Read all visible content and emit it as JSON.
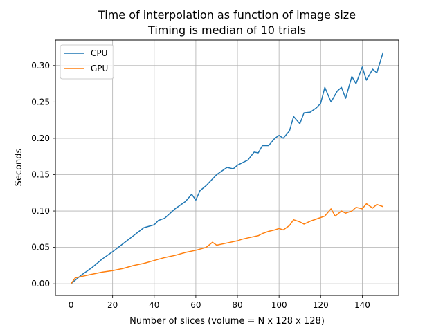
{
  "chart_data": {
    "type": "line",
    "title": "Time of interpolation as function of image size",
    "subtitle": "Timing is median of 10 trials",
    "xlabel": "Number of slices (volume = N x 128 x 128)",
    "ylabel": "Seconds",
    "xlim": [
      -7.5,
      157.5
    ],
    "ylim": [
      -0.016,
      0.335
    ],
    "xticks": [
      0,
      20,
      40,
      60,
      80,
      100,
      120,
      140
    ],
    "xtick_labels": [
      "0",
      "20",
      "40",
      "60",
      "80",
      "100",
      "120",
      "140"
    ],
    "yticks": [
      0.0,
      0.05,
      0.1,
      0.15,
      0.2,
      0.25,
      0.3
    ],
    "ytick_labels": [
      "0.00",
      "0.05",
      "0.10",
      "0.15",
      "0.20",
      "0.25",
      "0.30"
    ],
    "grid": true,
    "legend_position": "top-left",
    "series": [
      {
        "name": "CPU",
        "color": "#1f77b4",
        "x": [
          0,
          5,
          10,
          15,
          20,
          25,
          30,
          35,
          40,
          42,
          45,
          50,
          55,
          58,
          60,
          62,
          65,
          70,
          75,
          78,
          80,
          85,
          88,
          90,
          92,
          95,
          98,
          100,
          102,
          105,
          107,
          110,
          112,
          115,
          118,
          120,
          122,
          125,
          128,
          130,
          132,
          135,
          137,
          140,
          142,
          145,
          147,
          150
        ],
        "values": [
          0.0,
          0.012,
          0.022,
          0.034,
          0.044,
          0.055,
          0.066,
          0.077,
          0.081,
          0.087,
          0.09,
          0.103,
          0.113,
          0.123,
          0.115,
          0.128,
          0.135,
          0.15,
          0.16,
          0.158,
          0.163,
          0.17,
          0.181,
          0.18,
          0.19,
          0.19,
          0.2,
          0.204,
          0.2,
          0.21,
          0.23,
          0.22,
          0.235,
          0.236,
          0.242,
          0.248,
          0.27,
          0.25,
          0.265,
          0.27,
          0.255,
          0.285,
          0.275,
          0.298,
          0.28,
          0.295,
          0.29,
          0.318
        ]
      },
      {
        "name": "GPU",
        "color": "#ff7f0e",
        "x": [
          0,
          2,
          5,
          10,
          15,
          20,
          25,
          30,
          35,
          40,
          45,
          50,
          55,
          60,
          65,
          68,
          70,
          75,
          80,
          82,
          85,
          90,
          92,
          95,
          98,
          100,
          102,
          105,
          107,
          110,
          112,
          115,
          118,
          120,
          122,
          125,
          127,
          130,
          132,
          135,
          137,
          140,
          142,
          145,
          147,
          150
        ],
        "values": [
          0.0,
          0.008,
          0.01,
          0.013,
          0.016,
          0.018,
          0.021,
          0.025,
          0.028,
          0.032,
          0.036,
          0.039,
          0.043,
          0.046,
          0.05,
          0.057,
          0.053,
          0.056,
          0.059,
          0.061,
          0.063,
          0.066,
          0.069,
          0.072,
          0.074,
          0.076,
          0.074,
          0.08,
          0.088,
          0.085,
          0.082,
          0.086,
          0.089,
          0.091,
          0.093,
          0.103,
          0.093,
          0.1,
          0.097,
          0.1,
          0.105,
          0.103,
          0.11,
          0.104,
          0.109,
          0.106
        ]
      }
    ]
  }
}
